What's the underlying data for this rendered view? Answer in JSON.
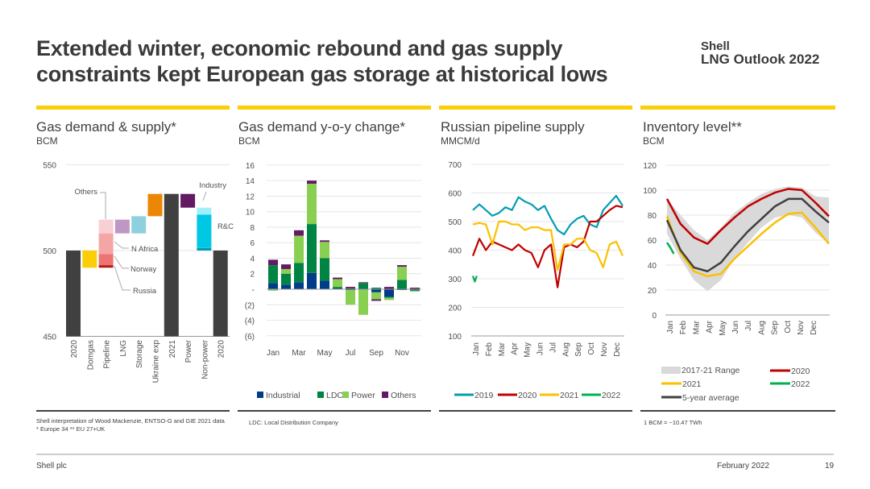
{
  "header": {
    "title_line1": "Extended winter, economic rebound and gas supply",
    "title_line2": "constraints kept European gas storage at historical lows",
    "logo_line1": "Shell",
    "logo_line2": "LNG Outlook 2022"
  },
  "panels": [
    {
      "title": "Gas demand & supply*",
      "unit": "BCM"
    },
    {
      "title": "Gas demand y-o-y change*",
      "unit": "BCM"
    },
    {
      "title": "Russian pipeline supply",
      "unit": "MMCM/d"
    },
    {
      "title": "Inventory level**",
      "unit": "BCM"
    }
  ],
  "notes": {
    "source": "Shell interpretation of Wood Mackenzie, ENTSO-G and GIE 2021 data",
    "regions": "* Europe 34   ** EU 27+UK",
    "ldc": "LDC: Local Distribution Company",
    "conversion": "1 BCM = ~10.47 TWh"
  },
  "footer": {
    "company": "Shell plc",
    "date": "February 2022",
    "page": "19"
  },
  "chart_data": [
    {
      "type": "bar",
      "subtype": "waterfall",
      "title": "Gas demand & supply*",
      "ylabel": "BCM",
      "ylim": [
        450,
        550
      ],
      "yticks": [
        "450",
        "500",
        "550"
      ],
      "bars": [
        {
          "label": "2020",
          "segments": [
            {
              "name": "2020",
              "from": 450,
              "to": 500,
              "color": "#404040"
            }
          ]
        },
        {
          "label": "Domgas",
          "segments": [
            {
              "name": "Domgas",
              "from": 490,
              "to": 500,
              "color": "#fbce07"
            }
          ]
        },
        {
          "label": "Pipeline",
          "segments": [
            {
              "name": "Russia",
              "from": 490,
              "to": 491.5,
              "color": "#b01c1c"
            },
            {
              "name": "Norway",
              "from": 491.5,
              "to": 498,
              "color": "#ee7373"
            },
            {
              "name": "N Africa",
              "from": 498,
              "to": 510,
              "color": "#f4a6a6"
            },
            {
              "name": "Others",
              "from": 510,
              "to": 518,
              "color": "#f8cfd2"
            }
          ]
        },
        {
          "label": "LNG",
          "segments": [
            {
              "name": "LNG",
              "from": 510,
              "to": 518,
              "color": "#bf97c4"
            }
          ]
        },
        {
          "label": "Storage",
          "segments": [
            {
              "name": "Storage",
              "from": 510,
              "to": 520,
              "color": "#8ed0de"
            }
          ]
        },
        {
          "label": "Ukraine exp",
          "segments": [
            {
              "name": "Ukraine exp",
              "from": 520,
              "to": 533,
              "color": "#eb8705"
            }
          ]
        },
        {
          "label": "2021",
          "segments": [
            {
              "name": "2021",
              "from": 450,
              "to": 533,
              "color": "#404040"
            }
          ]
        },
        {
          "label": "Power",
          "segments": [
            {
              "name": "Power",
              "from": 525,
              "to": 533,
              "color": "#641964"
            }
          ]
        },
        {
          "label": "Non-power",
          "segments": [
            {
              "name": "Other",
              "from": 500,
              "to": 501.5,
              "color": "#009eb4"
            },
            {
              "name": "R&C",
              "from": 501.5,
              "to": 521,
              "color": "#00c8e4"
            },
            {
              "name": "Industry",
              "from": 521,
              "to": 525,
              "color": "#a0f0fa"
            }
          ]
        },
        {
          "label": "2020",
          "segments": [
            {
              "name": "2020",
              "from": 450,
              "to": 500,
              "color": "#404040"
            }
          ]
        }
      ],
      "annotations": [
        "Others",
        "N Africa",
        "Norway",
        "Russia",
        "Industry",
        "R&C"
      ]
    },
    {
      "type": "bar",
      "subtype": "stacked",
      "title": "Gas demand y-o-y change*",
      "ylabel": "BCM",
      "ylim": [
        -6,
        16
      ],
      "yticks": [
        "16",
        "14",
        "12",
        "10",
        "8",
        "6",
        "4",
        "2",
        "-",
        "(2)",
        "(4)",
        "(6)"
      ],
      "categories": [
        "Jan",
        "Feb",
        "Mar",
        "Apr",
        "May",
        "Jun",
        "Jul",
        "Aug",
        "Sep",
        "Oct",
        "Nov",
        "Dec"
      ],
      "xtick_labels": [
        "Jan",
        "Mar",
        "May",
        "Jul",
        "Sep",
        "Nov"
      ],
      "series": [
        {
          "name": "Industrial",
          "color": "#003c88",
          "values": [
            0.8,
            0.6,
            0.9,
            2.1,
            1.1,
            0.1,
            -0.1,
            0.1,
            -0.4,
            -1.0,
            -0.1,
            -0.1
          ]
        },
        {
          "name": "LDC",
          "color": "#008443",
          "values": [
            2.3,
            1.4,
            2.5,
            6.3,
            2.9,
            0.2,
            0.1,
            0.7,
            0.2,
            -0.1,
            1.2,
            -0.1
          ]
        },
        {
          "name": "Power",
          "color": "#89cf52",
          "values": [
            -0.2,
            0.6,
            3.5,
            5.2,
            2.1,
            1.0,
            -1.9,
            -3.3,
            -0.9,
            -0.3,
            1.7,
            -0.1
          ]
        },
        {
          "name": "Others",
          "color": "#641964",
          "values": [
            0.7,
            0.6,
            0.7,
            0.4,
            0.2,
            0.2,
            0.2,
            0.1,
            -0.2,
            0.3,
            0.2,
            0.2
          ]
        }
      ]
    },
    {
      "type": "line",
      "title": "Russian pipeline supply",
      "ylabel": "MMCM/d",
      "ylim": [
        100,
        700
      ],
      "yticks": [
        "700",
        "600",
        "500",
        "400",
        "300",
        "200",
        "100"
      ],
      "xtick_labels": [
        "Jan",
        "Feb",
        "Mar",
        "Apr",
        "May",
        "Jun",
        "Jul",
        "Aug",
        "Sep",
        "Oct",
        "Nov",
        "Dec"
      ],
      "x_note": "semi-monthly points, index 0-23",
      "series": [
        {
          "name": "2019",
          "color": "#009eb4",
          "x": [
            0,
            1,
            2,
            3,
            4,
            5,
            6,
            7,
            8,
            9,
            10,
            11,
            12,
            13,
            14,
            15,
            16,
            17,
            18,
            19,
            20,
            21,
            22,
            23
          ],
          "values": [
            540,
            560,
            540,
            520,
            530,
            550,
            540,
            585,
            570,
            560,
            540,
            555,
            510,
            470,
            455,
            490,
            510,
            520,
            490,
            480,
            540,
            565,
            590,
            555
          ]
        },
        {
          "name": "2020",
          "color": "#c00000",
          "x": [
            0,
            1,
            2,
            3,
            4,
            5,
            6,
            7,
            8,
            9,
            10,
            11,
            12,
            13,
            14,
            15,
            16,
            17,
            18,
            19,
            20,
            21,
            22,
            23
          ],
          "values": [
            380,
            440,
            400,
            430,
            420,
            410,
            400,
            420,
            400,
            390,
            340,
            400,
            420,
            270,
            410,
            420,
            410,
            430,
            500,
            500,
            520,
            540,
            555,
            550
          ]
        },
        {
          "name": "2021",
          "color": "#fbc000",
          "x": [
            0,
            1,
            2,
            3,
            4,
            5,
            6,
            7,
            8,
            9,
            10,
            11,
            12,
            13,
            14,
            15,
            16,
            17,
            18,
            19,
            20,
            21,
            22,
            23
          ],
          "values": [
            490,
            495,
            490,
            420,
            500,
            500,
            490,
            490,
            470,
            480,
            480,
            470,
            470,
            330,
            420,
            420,
            440,
            440,
            400,
            390,
            340,
            420,
            430,
            380
          ]
        },
        {
          "name": "2022",
          "color": "#00b050",
          "x": [
            0,
            0.3,
            0.6
          ],
          "values": [
            310,
            290,
            310
          ]
        }
      ]
    },
    {
      "type": "area",
      "title": "Inventory level**",
      "ylabel": "BCM",
      "ylim": [
        0,
        120
      ],
      "yticks": [
        "120",
        "100",
        "80",
        "60",
        "40",
        "20",
        "0"
      ],
      "xtick_labels": [
        "Jan",
        "Feb",
        "Mar",
        "Apr",
        "May",
        "Jun",
        "Jul",
        "Aug",
        "Sep",
        "Oct",
        "Nov",
        "Dec"
      ],
      "x_note": "monthly points, index 0-12",
      "range": {
        "name": "2017-21 Range",
        "color": "#d9d9d9",
        "lower": [
          65,
          45,
          28,
          19,
          28,
          45,
          58,
          70,
          78,
          80,
          78,
          66,
          57
        ],
        "upper": [
          93,
          80,
          68,
          60,
          70,
          82,
          90,
          97,
          101,
          103,
          102,
          95,
          94
        ]
      },
      "series": [
        {
          "name": "2020",
          "color": "#c00000",
          "x": [
            0,
            1,
            2,
            3,
            4,
            5,
            6,
            7,
            8,
            9,
            10,
            11,
            12
          ],
          "values": [
            93,
            73,
            62,
            57,
            68,
            78,
            87,
            93,
            98,
            101,
            100,
            90,
            79
          ]
        },
        {
          "name": "2021",
          "color": "#fbc000",
          "x": [
            0,
            1,
            2,
            3,
            4,
            5,
            6,
            7,
            8,
            9,
            10,
            11,
            12
          ],
          "values": [
            79,
            50,
            35,
            31,
            33,
            45,
            55,
            65,
            74,
            81,
            82,
            70,
            57
          ]
        },
        {
          "name": "2022",
          "color": "#00b050",
          "x": [
            0,
            0.25,
            0.5
          ],
          "values": [
            58,
            54,
            49
          ]
        },
        {
          "name": "5-year average",
          "color": "#404040",
          "x": [
            0,
            1,
            2,
            3,
            4,
            5,
            6,
            7,
            8,
            9,
            10,
            11,
            12
          ],
          "values": [
            76,
            52,
            38,
            35,
            42,
            55,
            67,
            77,
            87,
            93,
            93,
            83,
            74
          ]
        }
      ]
    }
  ]
}
